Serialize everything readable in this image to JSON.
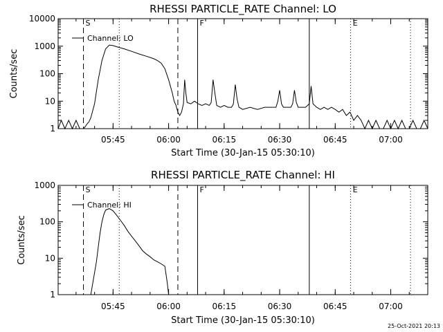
{
  "timestamp": "25-Oct-2021 20:13",
  "chart_data": [
    {
      "type": "line",
      "title": "RHESSI PARTICLE_RATE Channel: LO",
      "xlabel": "Start Time (30-Jan-15 05:30:10)",
      "ylabel": "Counts/sec",
      "legend": "Channel: LO",
      "legend_position": "top-left",
      "yscale": "log",
      "ylim": [
        1,
        10000
      ],
      "yticks": [
        "1",
        "10",
        "100",
        "1000",
        "10000"
      ],
      "xlim": [
        "05:30:10",
        "07:10:00"
      ],
      "xticks": [
        "05:45",
        "06:00",
        "06:15",
        "06:30",
        "06:45",
        "07:00"
      ],
      "markers": [
        {
          "label": "S",
          "time": "05:37:00",
          "style": "dashed"
        },
        {
          "label": "",
          "time": "05:46:40",
          "style": "dotted"
        },
        {
          "label": "",
          "time": "06:02:30",
          "style": "dashed"
        },
        {
          "label": "F",
          "time": "06:07:50",
          "style": "solid"
        },
        {
          "label": "",
          "time": "06:38:00",
          "style": "solid"
        },
        {
          "label": "E",
          "time": "06:49:10",
          "style": "dotted"
        },
        {
          "label": "",
          "time": "07:05:20",
          "style": "dotted"
        }
      ],
      "x": [
        "05:30:10",
        "05:31:00",
        "05:32:00",
        "05:33:00",
        "05:34:00",
        "05:35:00",
        "05:36:00",
        "05:37:00",
        "05:37:30",
        "05:38:00",
        "05:38:30",
        "05:39:00",
        "05:40:00",
        "05:41:00",
        "05:42:00",
        "05:43:00",
        "05:44:00",
        "05:45:00",
        "05:46:00",
        "05:48:00",
        "05:50:00",
        "05:52:00",
        "05:54:00",
        "05:56:00",
        "05:57:00",
        "05:58:00",
        "05:59:00",
        "06:00:00",
        "06:01:00",
        "06:01:30",
        "06:02:00",
        "06:02:30",
        "06:03:00",
        "06:03:30",
        "06:04:00",
        "06:04:20",
        "06:04:40",
        "06:05:00",
        "06:06:00",
        "06:07:00",
        "06:08:00",
        "06:09:00",
        "06:10:00",
        "06:11:00",
        "06:11:30",
        "06:12:00",
        "06:12:30",
        "06:13:00",
        "06:14:00",
        "06:15:00",
        "06:16:00",
        "06:17:00",
        "06:17:30",
        "06:18:00",
        "06:18:30",
        "06:19:00",
        "06:20:00",
        "06:22:00",
        "06:24:00",
        "06:26:00",
        "06:28:00",
        "06:29:00",
        "06:29:30",
        "06:30:00",
        "06:30:30",
        "06:31:00",
        "06:32:00",
        "06:33:00",
        "06:33:30",
        "06:34:00",
        "06:34:30",
        "06:35:00",
        "06:36:00",
        "06:37:00",
        "06:38:00",
        "06:38:30",
        "06:39:00",
        "06:40:00",
        "06:41:00",
        "06:42:00",
        "06:43:00",
        "06:44:00",
        "06:45:00",
        "06:46:00",
        "06:47:00",
        "06:48:00",
        "06:49:00",
        "06:50:00",
        "06:51:00",
        "06:52:00",
        "06:53:00",
        "06:54:00",
        "06:55:00",
        "06:56:00",
        "06:57:00",
        "06:58:00",
        "06:59:00",
        "07:00:00",
        "07:01:00",
        "07:02:00",
        "07:03:00",
        "07:04:00",
        "07:05:00",
        "07:06:00",
        "07:07:00",
        "07:08:00",
        "07:09:00",
        "07:10:00"
      ],
      "y": [
        1,
        2,
        1,
        2,
        1,
        2,
        1,
        1,
        1.2,
        1.5,
        1.8,
        2.5,
        8,
        60,
        300,
        800,
        1100,
        1050,
        950,
        800,
        650,
        520,
        430,
        350,
        300,
        240,
        150,
        60,
        20,
        10,
        7,
        4,
        3,
        4,
        8,
        60,
        20,
        9,
        8,
        10,
        8,
        7,
        8,
        7,
        9,
        60,
        20,
        7,
        6,
        7,
        6,
        6,
        8,
        40,
        12,
        6,
        5,
        6,
        5,
        6,
        6,
        6,
        10,
        25,
        8,
        6,
        6,
        6,
        8,
        25,
        9,
        6,
        6,
        6,
        8,
        35,
        8,
        6,
        5,
        6,
        5,
        6,
        5,
        4,
        5,
        3,
        4,
        2,
        3,
        2,
        1,
        2,
        1,
        2,
        1,
        1,
        2,
        1,
        2,
        1,
        2,
        1,
        1,
        2,
        1,
        1,
        2,
        1
      ]
    },
    {
      "type": "line",
      "title": "RHESSI PARTICLE_RATE Channel: HI",
      "xlabel": "Start Time (30-Jan-15 05:30:10)",
      "ylabel": "Counts/sec",
      "legend": "Channel: HI",
      "legend_position": "top-left",
      "yscale": "log",
      "ylim": [
        1,
        1000
      ],
      "yticks": [
        "1",
        "10",
        "100",
        "1000"
      ],
      "xlim": [
        "05:30:10",
        "07:10:00"
      ],
      "xticks": [
        "05:45",
        "06:00",
        "06:15",
        "06:30",
        "06:45",
        "07:00"
      ],
      "markers": [
        {
          "label": "S",
          "time": "05:37:00",
          "style": "dashed"
        },
        {
          "label": "",
          "time": "05:46:40",
          "style": "dotted"
        },
        {
          "label": "",
          "time": "06:02:30",
          "style": "dashed"
        },
        {
          "label": "F",
          "time": "06:07:50",
          "style": "solid"
        },
        {
          "label": "",
          "time": "06:38:00",
          "style": "solid"
        },
        {
          "label": "E",
          "time": "06:49:10",
          "style": "dotted"
        },
        {
          "label": "",
          "time": "07:05:20",
          "style": "dotted"
        }
      ],
      "x": [
        "05:39:00",
        "05:39:30",
        "05:40:00",
        "05:40:30",
        "05:41:00",
        "05:41:30",
        "05:42:00",
        "05:42:30",
        "05:43:00",
        "05:44:00",
        "05:45:00",
        "05:46:00",
        "05:47:00",
        "05:48:00",
        "05:49:00",
        "05:50:00",
        "05:51:00",
        "05:52:00",
        "05:53:00",
        "05:54:00",
        "05:55:00",
        "05:56:00",
        "05:57:00",
        "05:58:00",
        "05:59:00",
        "05:59:40",
        "06:00:00"
      ],
      "y": [
        1,
        2,
        4,
        8,
        20,
        50,
        100,
        160,
        210,
        230,
        200,
        150,
        110,
        80,
        55,
        40,
        30,
        22,
        16,
        13,
        11,
        9,
        8,
        7,
        6,
        2,
        1
      ]
    }
  ]
}
